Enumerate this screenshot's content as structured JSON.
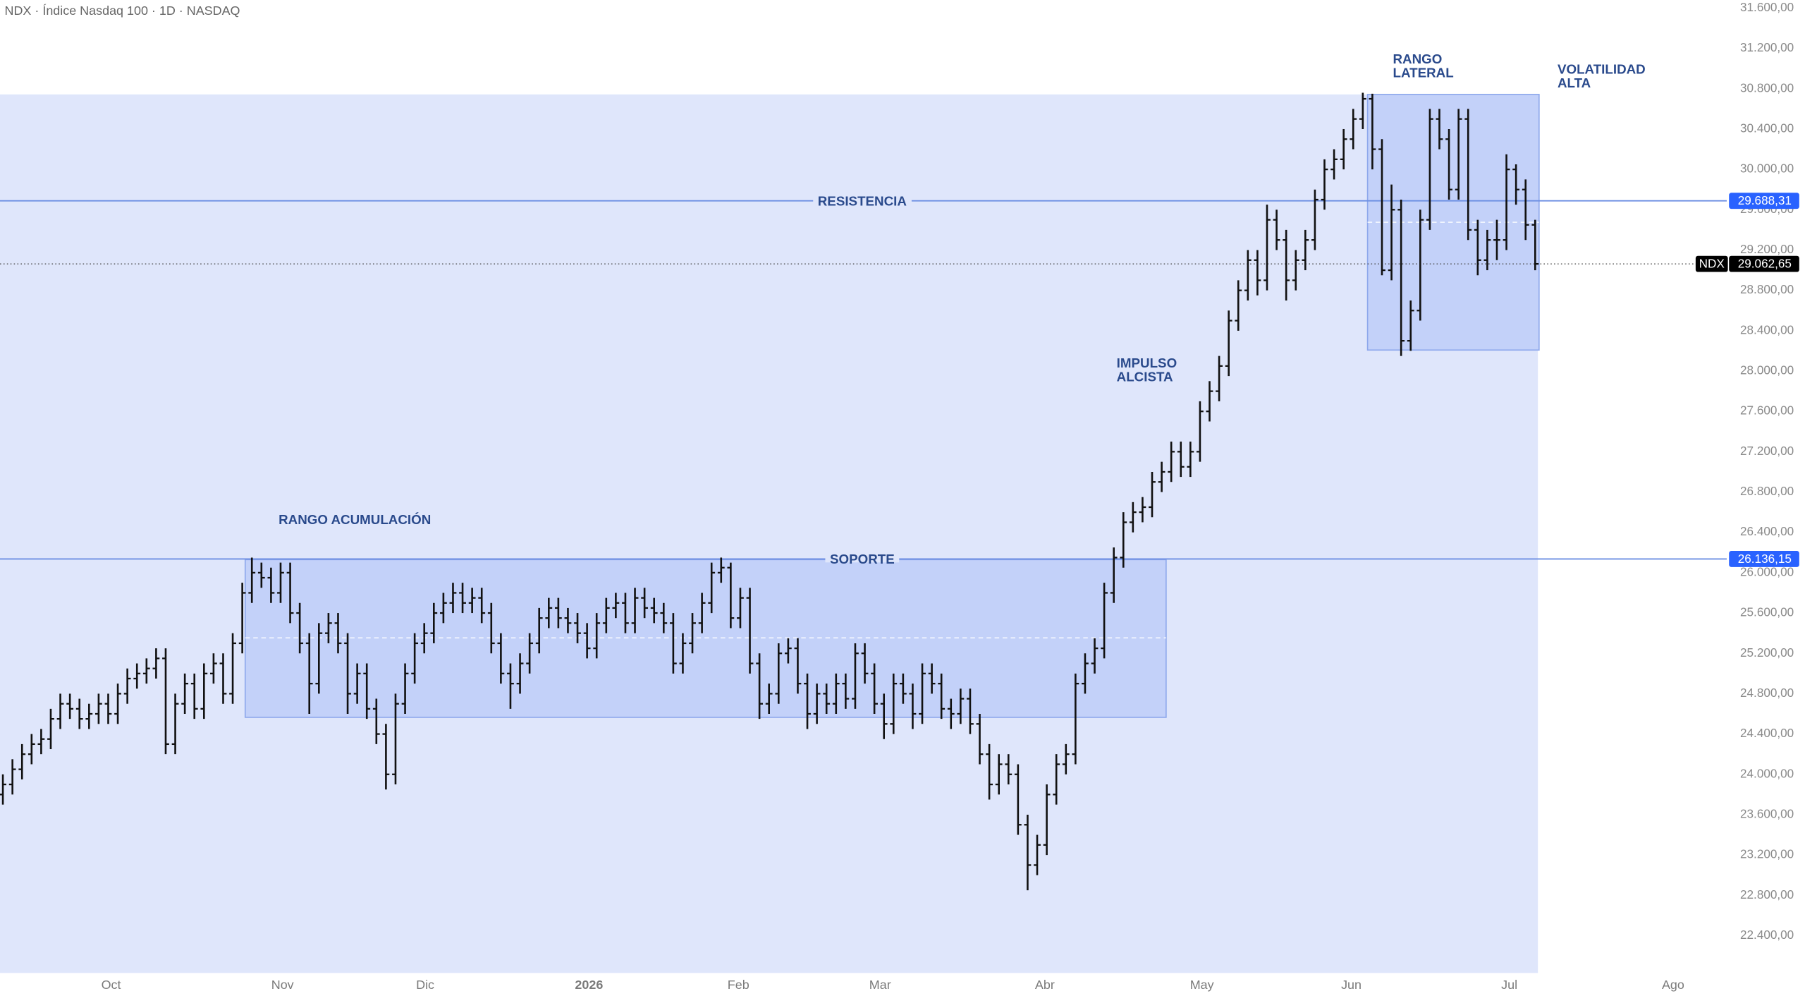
{
  "chart_data": {
    "type": "ohlc",
    "title": "NDX · Índice Nasdaq 100 · 1D · NASDAQ",
    "open": [
      23800,
      23900,
      24050,
      24200,
      24300,
      24350,
      24550,
      24700,
      24650,
      24550,
      24600,
      24700,
      24600,
      24800,
      24950,
      25000,
      25050,
      25150,
      24300,
      24700,
      24900,
      24650,
      25000,
      25100,
      24800,
      25300,
      25800,
      26000,
      25950,
      25800,
      26000,
      25600,
      25300,
      24900,
      25400,
      25500,
      25300,
      24800,
      25000,
      24650,
      24400,
      24000,
      24700,
      25000,
      25300,
      25400,
      25600,
      25700,
      25800,
      25700,
      25750,
      25600,
      25300,
      25000,
      24900,
      25100,
      25300,
      25550,
      25650,
      25550,
      25500,
      25400,
      25250,
      25500,
      25650,
      25700,
      25500,
      25750,
      25650,
      25600,
      25500,
      25100,
      25300,
      25500,
      25700,
      26000,
      26050,
      25550,
      25750,
      25100,
      24700,
      24800,
      25200,
      25250,
      24900,
      24600,
      24800,
      24700,
      24900,
      24750,
      25200,
      25000,
      24700,
      24500,
      24900,
      24800,
      24600,
      25000,
      24900,
      24650,
      24600,
      24750,
      24500,
      24200,
      23900,
      24100,
      24000,
      23500,
      23100,
      23300,
      23800,
      24100,
      24200,
      24900,
      25100,
      25250,
      25800,
      26150,
      26500,
      26600,
      26650,
      26900,
      27000,
      27200,
      27050,
      27200,
      27600,
      27800,
      28050,
      28500,
      28800,
      29100,
      28900,
      29500,
      29300,
      28900,
      29100,
      29300,
      29700,
      30000,
      30100,
      30300,
      30500,
      30700,
      30200,
      29000,
      29600,
      28300,
      28600,
      29500,
      30500,
      30300,
      29800,
      30500,
      29400,
      29100,
      29300,
      29300,
      30000,
      29800,
      29450
    ],
    "high": [
      24000,
      24150,
      24300,
      24400,
      24450,
      24650,
      24800,
      24800,
      24750,
      24700,
      24800,
      24800,
      24900,
      25050,
      25100,
      25150,
      25250,
      25250,
      24800,
      25000,
      25000,
      25100,
      25200,
      25200,
      25400,
      25900,
      26150,
      26100,
      26050,
      26100,
      26100,
      25700,
      25400,
      25500,
      25600,
      25600,
      25400,
      25100,
      25100,
      24750,
      24500,
      24800,
      25100,
      25400,
      25500,
      25700,
      25800,
      25900,
      25900,
      25850,
      25850,
      25700,
      25400,
      25100,
      25200,
      25400,
      25650,
      25750,
      25750,
      25650,
      25600,
      25500,
      25600,
      25750,
      25800,
      25800,
      25850,
      25850,
      25750,
      25700,
      25600,
      25400,
      25600,
      25800,
      26100,
      26150,
      26100,
      25850,
      25850,
      25200,
      24900,
      25300,
      25350,
      25350,
      25000,
      24900,
      24900,
      25000,
      25000,
      25300,
      25300,
      25100,
      24800,
      25000,
      25000,
      24900,
      25100,
      25100,
      25000,
      24750,
      24850,
      24850,
      24600,
      24300,
      24200,
      24200,
      24100,
      23600,
      23400,
      23900,
      24200,
      24300,
      25000,
      25200,
      25350,
      25900,
      26250,
      26600,
      26700,
      26750,
      27000,
      27100,
      27300,
      27300,
      27300,
      27700,
      27900,
      28150,
      28600,
      28900,
      29200,
      29200,
      29650,
      29600,
      29400,
      29200,
      29400,
      29800,
      30100,
      30200,
      30400,
      30600,
      30760,
      30750,
      30300,
      29850,
      29700,
      28700,
      29600,
      30600,
      30600,
      30400,
      30600,
      30600,
      29500,
      29400,
      29500,
      30150,
      30050,
      29900,
      29500
    ],
    "low": [
      23700,
      23800,
      23950,
      24100,
      24200,
      24250,
      24450,
      24550,
      24450,
      24450,
      24500,
      24500,
      24500,
      24700,
      24850,
      24900,
      24950,
      24200,
      24200,
      24600,
      24550,
      24550,
      24900,
      24700,
      24700,
      25200,
      25700,
      25850,
      25700,
      25700,
      25500,
      25200,
      24600,
      24800,
      25300,
      25200,
      24600,
      24700,
      24550,
      24300,
      23850,
      23900,
      24600,
      24900,
      25200,
      25300,
      25500,
      25600,
      25600,
      25600,
      25500,
      25200,
      24900,
      24650,
      24800,
      25000,
      25200,
      25450,
      25450,
      25400,
      25300,
      25150,
      25150,
      25400,
      25550,
      25400,
      25400,
      25550,
      25500,
      25400,
      25000,
      25000,
      25200,
      25400,
      25600,
      25900,
      25450,
      25450,
      25000,
      24550,
      24600,
      24700,
      25100,
      24800,
      24450,
      24500,
      24600,
      24600,
      24650,
      24650,
      24900,
      24600,
      24350,
      24400,
      24700,
      24450,
      24500,
      24800,
      24550,
      24450,
      24500,
      24400,
      24100,
      23750,
      23800,
      23900,
      23400,
      22850,
      23000,
      23200,
      23700,
      24000,
      24100,
      24800,
      25000,
      25150,
      25700,
      26050,
      26400,
      26500,
      26550,
      26800,
      26900,
      26950,
      26950,
      27100,
      27500,
      27700,
      27950,
      28400,
      28700,
      28750,
      28800,
      29200,
      28700,
      28800,
      29000,
      29200,
      29600,
      29900,
      30000,
      30200,
      30400,
      30000,
      28950,
      28900,
      28150,
      28200,
      28500,
      29400,
      30200,
      29700,
      29700,
      29300,
      28950,
      29000,
      29100,
      29200,
      29650,
      29300,
      29000
    ],
    "close": [
      23900,
      24050,
      24200,
      24300,
      24350,
      24550,
      24700,
      24650,
      24550,
      24600,
      24700,
      24600,
      24800,
      24950,
      25000,
      25050,
      25150,
      24300,
      24700,
      24900,
      24650,
      25000,
      25100,
      24800,
      25300,
      25800,
      26000,
      25950,
      25800,
      26000,
      25600,
      25300,
      24900,
      25400,
      25500,
      25300,
      24800,
      25000,
      24650,
      24400,
      24000,
      24700,
      25000,
      25300,
      25400,
      25600,
      25700,
      25800,
      25700,
      25750,
      25600,
      25300,
      25000,
      24900,
      25100,
      25300,
      25550,
      25650,
      25550,
      25500,
      25400,
      25250,
      25500,
      25650,
      25700,
      25500,
      25750,
      25650,
      25600,
      25500,
      25100,
      25300,
      25500,
      25700,
      26000,
      26050,
      25550,
      25750,
      25100,
      24700,
      24800,
      25200,
      25250,
      24900,
      24600,
      24800,
      24700,
      24900,
      24750,
      25200,
      25000,
      24700,
      24500,
      24900,
      24800,
      24600,
      25000,
      24900,
      24650,
      24600,
      24750,
      24500,
      24200,
      23900,
      24100,
      24000,
      23500,
      23100,
      23300,
      23800,
      24100,
      24200,
      24900,
      25100,
      25250,
      25800,
      26150,
      26500,
      26600,
      26650,
      26900,
      27000,
      27200,
      27050,
      27200,
      27600,
      27800,
      28050,
      28500,
      28800,
      29100,
      28900,
      29500,
      29300,
      28900,
      29100,
      29300,
      29700,
      30000,
      30100,
      30300,
      30500,
      30700,
      30200,
      29000,
      29600,
      28300,
      28600,
      29500,
      30500,
      30300,
      29800,
      30500,
      29400,
      29100,
      29300,
      29300,
      30000,
      29800,
      29450,
      29062.65
    ],
    "color": "#111111",
    "xlim": [
      -0.3,
      180
    ],
    "xticks": [
      {
        "value": 11.3,
        "label": "Oct"
      },
      {
        "value": 29.2,
        "label": "Nov"
      },
      {
        "value": 44.1,
        "label": "Dic"
      },
      {
        "value": 61.2,
        "label": "2026"
      },
      {
        "value": 76.8,
        "label": "Feb"
      },
      {
        "value": 91.6,
        "label": "Mar"
      },
      {
        "value": 108.8,
        "label": "Abr"
      },
      {
        "value": 125.2,
        "label": "May"
      },
      {
        "value": 140.8,
        "label": "Jun"
      },
      {
        "value": 157.3,
        "label": "Jul"
      },
      {
        "value": 174.4,
        "label": "Ago"
      }
    ],
    "ylim": [
      22030,
      31680
    ],
    "yticks": [
      {
        "value": 22400,
        "label": "22.400,00"
      },
      {
        "value": 22800,
        "label": "22.800,00"
      },
      {
        "value": 23200,
        "label": "23.200,00"
      },
      {
        "value": 23600,
        "label": "23.600,00"
      },
      {
        "value": 24000,
        "label": "24.000,00"
      },
      {
        "value": 24400,
        "label": "24.400,00"
      },
      {
        "value": 24800,
        "label": "24.800,00"
      },
      {
        "value": 25200,
        "label": "25.200,00"
      },
      {
        "value": 25600,
        "label": "25.600,00"
      },
      {
        "value": 26000,
        "label": "26.000,00"
      },
      {
        "value": 26400,
        "label": "26.400,00"
      },
      {
        "value": 26800,
        "label": "26.800,00"
      },
      {
        "value": 27200,
        "label": "27.200,00"
      },
      {
        "value": 27600,
        "label": "27.600,00"
      },
      {
        "value": 28000,
        "label": "28.000,00"
      },
      {
        "value": 28400,
        "label": "28.400,00"
      },
      {
        "value": 28800,
        "label": "28.800,00"
      },
      {
        "value": 29200,
        "label": "29.200,00"
      },
      {
        "value": 29600,
        "label": "29.600,00"
      },
      {
        "value": 30000,
        "label": "30.000,00"
      },
      {
        "value": 30400,
        "label": "30.400,00"
      },
      {
        "value": 30800,
        "label": "30.800,00"
      },
      {
        "value": 31200,
        "label": "31.200,00"
      },
      {
        "value": 31600,
        "label": "31.600,00"
      }
    ],
    "grid": false,
    "levels": [
      {
        "name": "RESISTENCIA",
        "value": 29688.31,
        "label": "29.688,31",
        "color": "#6d8fe3"
      },
      {
        "name": "SOPORTE",
        "value": 26136.15,
        "label": "26.136,15",
        "color": "#6d8fe3"
      }
    ],
    "last": {
      "name": "NDX",
      "value": 29062.65,
      "label": "29.062,65"
    },
    "annotations": [
      {
        "lines": [
          "RANGO ACUMULACIÓN"
        ]
      },
      {
        "lines": [
          "IMPULSO",
          "ALCISTA"
        ]
      },
      {
        "lines": [
          "RANGO",
          "LATERAL"
        ]
      },
      {
        "lines": [
          "VOLATILIDAD",
          "ALTA"
        ]
      }
    ]
  }
}
